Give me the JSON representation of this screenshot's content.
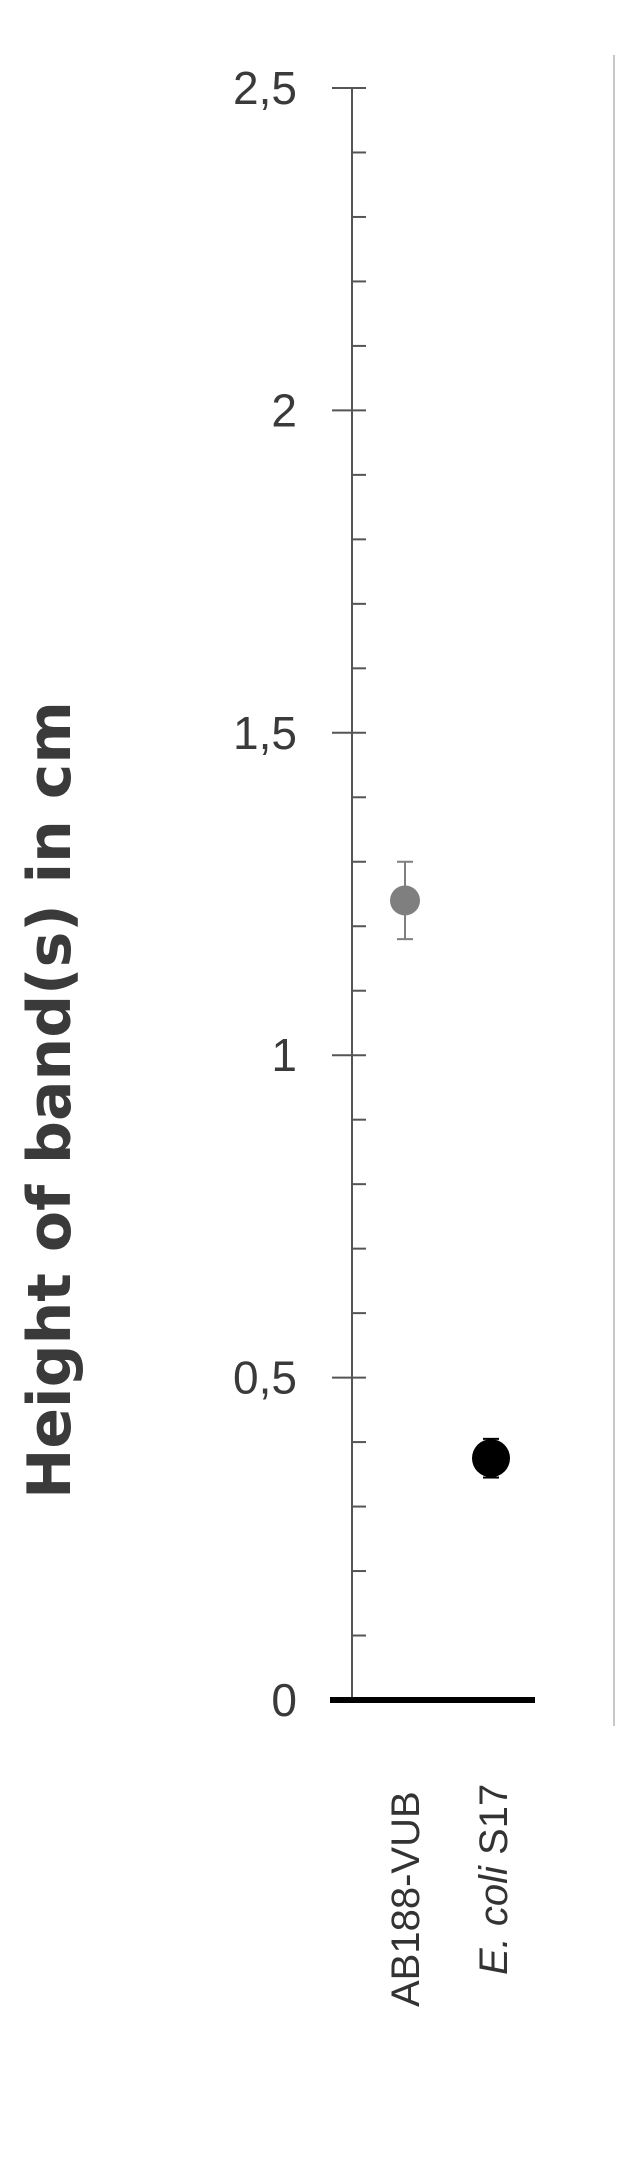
{
  "chart_data": {
    "type": "scatter",
    "title": "",
    "ylabel": "Height of band(s) in cm",
    "xlabel": "",
    "ylim": [
      0,
      2.5
    ],
    "y_ticks": [
      "0",
      "0,5",
      "1",
      "1,5",
      "2",
      "2,5"
    ],
    "categories": [
      {
        "label_italic": "",
        "label_plain": "AB188-VUB"
      },
      {
        "label_italic": "E. coli",
        "label_plain": " S17"
      }
    ],
    "series": [
      {
        "points": [
          {
            "category_index": 0,
            "y": 1.24,
            "error": 0.06,
            "color": "#7f7f7f"
          },
          {
            "category_index": 1,
            "y": 0.375,
            "error": 0.03,
            "color": "#000000"
          }
        ]
      }
    ],
    "grid": false,
    "legend": "none"
  }
}
